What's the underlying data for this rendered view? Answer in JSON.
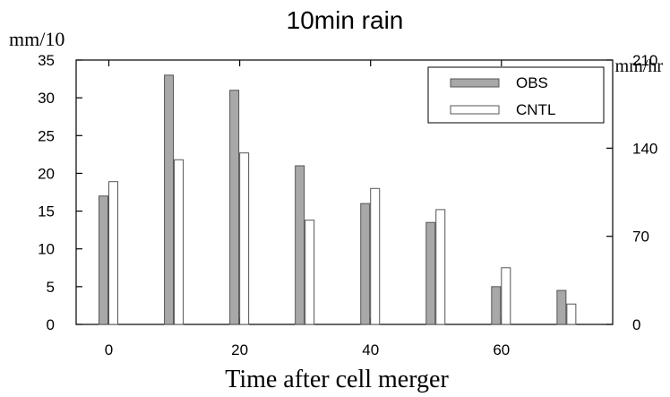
{
  "chart_data": {
    "type": "bar",
    "title": "10min rain",
    "xlabel": "Time after cell merger",
    "ylabel_left": "mm/10",
    "ylabel_right": "mm/hr",
    "x": [
      0,
      10,
      20,
      30,
      40,
      50,
      60,
      70
    ],
    "xlim": [
      -5,
      77
    ],
    "xticks": [
      0,
      20,
      40,
      60
    ],
    "ylim": [
      0,
      35
    ],
    "yticks": [
      0,
      5,
      10,
      15,
      20,
      25,
      30,
      35
    ],
    "ylim_right": [
      0,
      210
    ],
    "yticks_right": [
      0,
      70,
      140,
      210
    ],
    "grid": false,
    "legend_position": "top-right",
    "series": [
      {
        "name": "OBS",
        "color": "#a8a8a8",
        "values": [
          17,
          33,
          31,
          21,
          16,
          13.5,
          5,
          4.5
        ]
      },
      {
        "name": "CNTL",
        "color": "#ffffff",
        "values": [
          18.9,
          21.8,
          22.7,
          13.8,
          18,
          15.2,
          7.5,
          2.7
        ]
      }
    ]
  }
}
